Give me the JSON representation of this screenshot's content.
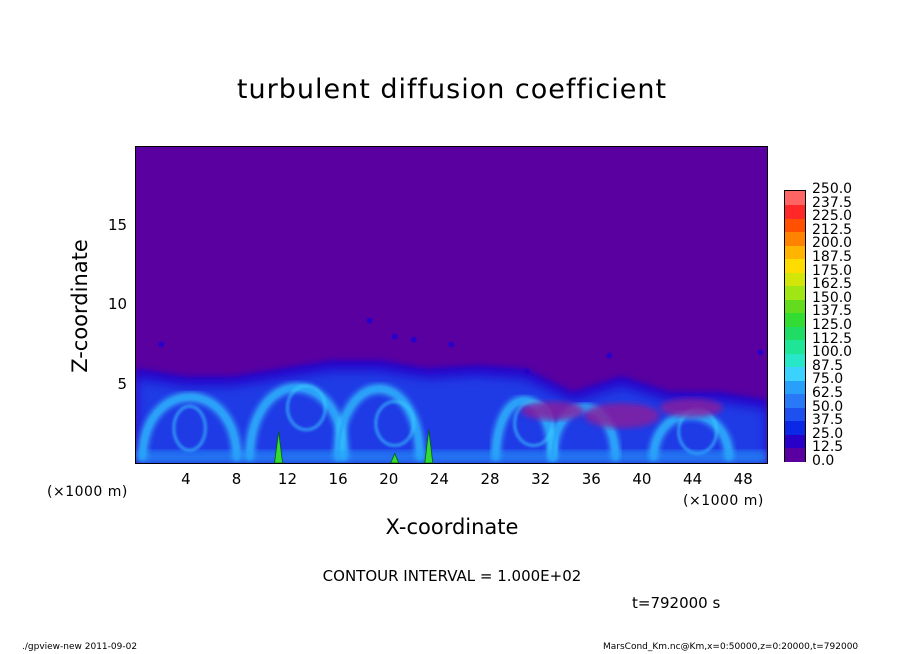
{
  "chart_data": {
    "type": "heatmap",
    "title": "turbulent diffusion coefficient",
    "xlabel": "X-coordinate",
    "ylabel": "Z-coordinate",
    "x_unit_label": "(×1000 m)",
    "xlim": [
      0,
      50
    ],
    "ylim": [
      0,
      20
    ],
    "xticks": [
      4,
      8,
      12,
      16,
      20,
      24,
      28,
      32,
      36,
      40,
      44,
      48
    ],
    "yticks": [
      5,
      10,
      15
    ],
    "contour_interval_text": "CONTOUR INTERVAL = 1.000E+02",
    "time_text": "t=792000 s",
    "colorbar": {
      "levels": [
        "0.0",
        "12.5",
        "25.0",
        "37.5",
        "50.0",
        "62.5",
        "75.0",
        "87.5",
        "100.0",
        "112.5",
        "125.0",
        "137.5",
        "150.0",
        "162.5",
        "175.0",
        "187.5",
        "200.0",
        "212.5",
        "225.0",
        "237.5",
        "250.0"
      ],
      "colors": [
        "#5a00a0",
        "#2800c8",
        "#0a28e6",
        "#1e50f0",
        "#2878f8",
        "#28a0fa",
        "#3cd2ff",
        "#28e6c8",
        "#1ee696",
        "#1edc64",
        "#32dc32",
        "#64dc1e",
        "#a0e614",
        "#d2e60a",
        "#ffdc00",
        "#ffb400",
        "#ff8200",
        "#ff5000",
        "#ff2828",
        "#ff6464"
      ]
    },
    "background_value": 0.0,
    "plume_top_z": [
      6.0,
      5.5,
      5.5,
      6.0,
      6.5,
      6.5,
      6.0,
      6.2,
      6.0,
      4.5,
      5.5,
      4.5,
      4.5,
      4.0
    ]
  },
  "footer": {
    "left": "./gpview-new  2011-09-02",
    "right": "MarsCond_Km.nc@Km,x=0:50000,z=0:20000,t=792000"
  }
}
